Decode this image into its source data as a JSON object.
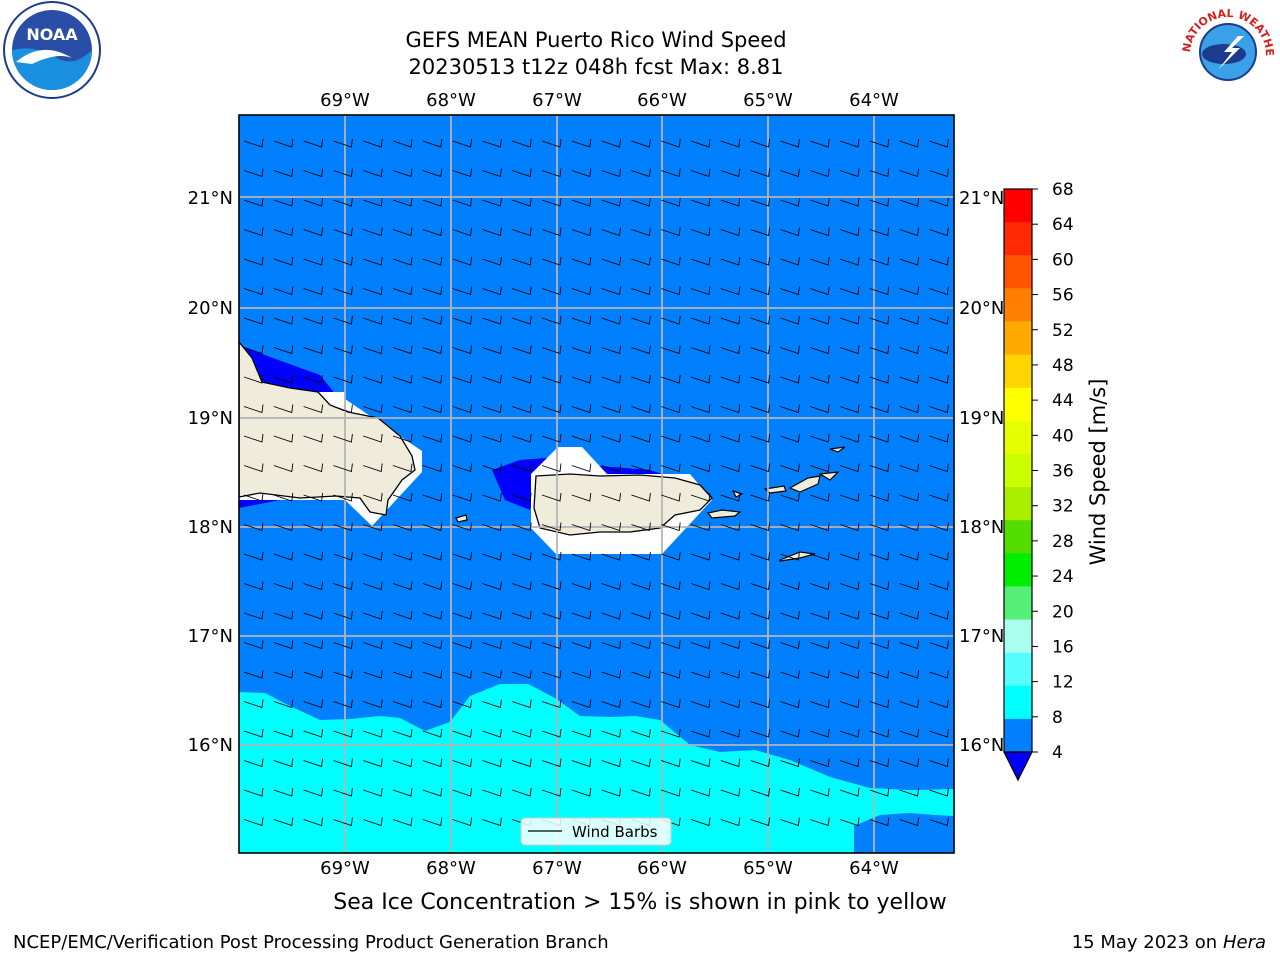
{
  "header": {
    "title_line1": "GEFS MEAN Puerto Rico Wind Speed",
    "title_line2": "20230513 t12z 048h fcst   Max: 8.81"
  },
  "logos": {
    "left_text": "NOAA",
    "right_text": "NATIONAL WEATHER SERVICE"
  },
  "map": {
    "lon_labels": [
      "69°W",
      "68°W",
      "67°W",
      "66°W",
      "65°W",
      "64°W"
    ],
    "lat_labels": [
      "21°N",
      "20°N",
      "19°N",
      "18°N",
      "17°N",
      "16°N"
    ],
    "legend_label": "Wind Barbs"
  },
  "colorbar": {
    "label": "Wind Speed [m/s]",
    "ticks": [
      "68",
      "64",
      "60",
      "56",
      "52",
      "48",
      "44",
      "40",
      "36",
      "32",
      "28",
      "24",
      "20",
      "16",
      "12",
      "8",
      "4"
    ],
    "colors": [
      "#ff0000",
      "#ff2a00",
      "#ff5500",
      "#ff8000",
      "#ffaa00",
      "#ffd400",
      "#ffff00",
      "#e6ff00",
      "#ccff00",
      "#aaee00",
      "#55dd00",
      "#00ee00",
      "#55ee77",
      "#aaffee",
      "#55ffff",
      "#00ffff",
      "#0080ff"
    ],
    "under_color": "#0000ff"
  },
  "caption": "Sea Ice Concentration > 15% is shown in pink to yellow",
  "footer": {
    "left": "NCEP/EMC/Verification Post Processing Product Generation Branch",
    "date": "15 May 2023 on",
    "host": "Hera"
  }
}
